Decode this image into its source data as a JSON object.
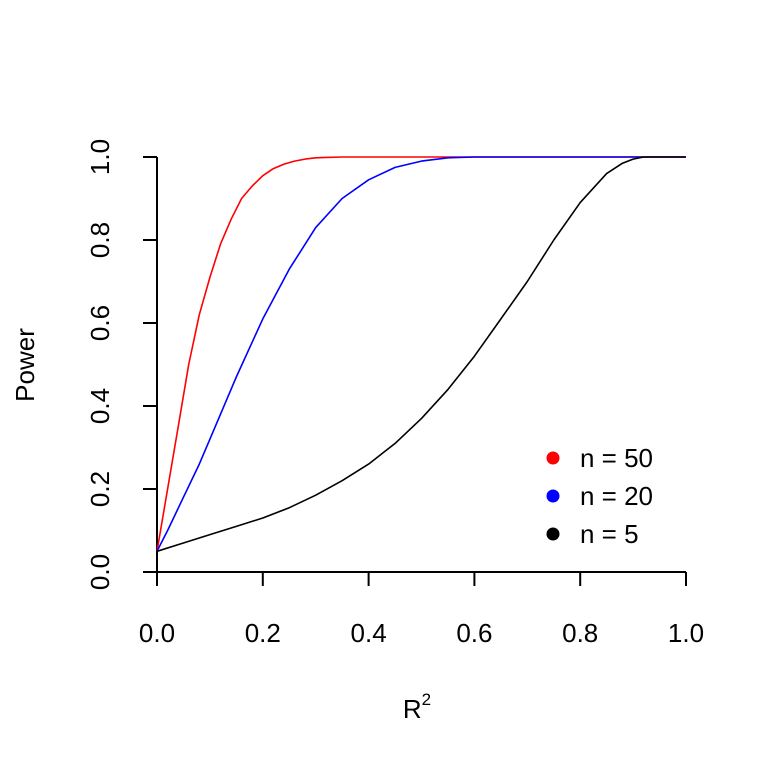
{
  "chart_data": {
    "type": "line",
    "title": "",
    "xlabel": "R",
    "xlabel_superscript": "2",
    "ylabel": "Power",
    "xlim": [
      0,
      1
    ],
    "ylim": [
      0,
      1
    ],
    "xticks": [
      "0.0",
      "0.2",
      "0.4",
      "0.6",
      "0.8",
      "1.0"
    ],
    "yticks": [
      "0.0",
      "0.2",
      "0.4",
      "0.6",
      "0.8",
      "1.0"
    ],
    "grid": false,
    "legend_position": "bottom-right",
    "series": [
      {
        "name": "n = 50",
        "color": "#ff0000",
        "x": [
          0,
          0.02,
          0.04,
          0.06,
          0.08,
          0.1,
          0.12,
          0.14,
          0.16,
          0.18,
          0.2,
          0.22,
          0.24,
          0.26,
          0.28,
          0.3,
          0.32,
          0.35,
          0.4,
          0.5,
          0.6,
          0.7,
          0.8,
          0.9,
          1.0
        ],
        "y": [
          0.05,
          0.2,
          0.35,
          0.5,
          0.62,
          0.71,
          0.79,
          0.85,
          0.9,
          0.93,
          0.955,
          0.972,
          0.983,
          0.99,
          0.995,
          0.998,
          0.999,
          1.0,
          1.0,
          1.0,
          1.0,
          1.0,
          1.0,
          1.0,
          1.0
        ]
      },
      {
        "name": "n = 20",
        "color": "#0000ff",
        "x": [
          0,
          0.02,
          0.05,
          0.08,
          0.1,
          0.15,
          0.2,
          0.25,
          0.3,
          0.35,
          0.4,
          0.45,
          0.5,
          0.55,
          0.6,
          0.7,
          0.8,
          0.9,
          1.0
        ],
        "y": [
          0.05,
          0.1,
          0.18,
          0.26,
          0.32,
          0.47,
          0.61,
          0.73,
          0.83,
          0.9,
          0.945,
          0.975,
          0.99,
          0.998,
          1.0,
          1.0,
          1.0,
          1.0,
          1.0
        ]
      },
      {
        "name": "n = 5",
        "color": "#000000",
        "x": [
          0,
          0.05,
          0.1,
          0.15,
          0.2,
          0.25,
          0.3,
          0.35,
          0.4,
          0.45,
          0.5,
          0.55,
          0.6,
          0.65,
          0.7,
          0.75,
          0.8,
          0.85,
          0.88,
          0.9,
          0.92,
          0.94,
          0.96,
          1.0
        ],
        "y": [
          0.05,
          0.07,
          0.09,
          0.11,
          0.13,
          0.155,
          0.185,
          0.22,
          0.26,
          0.31,
          0.37,
          0.44,
          0.52,
          0.61,
          0.7,
          0.8,
          0.89,
          0.96,
          0.985,
          0.995,
          1.0,
          1.0,
          1.0,
          1.0
        ]
      }
    ]
  }
}
